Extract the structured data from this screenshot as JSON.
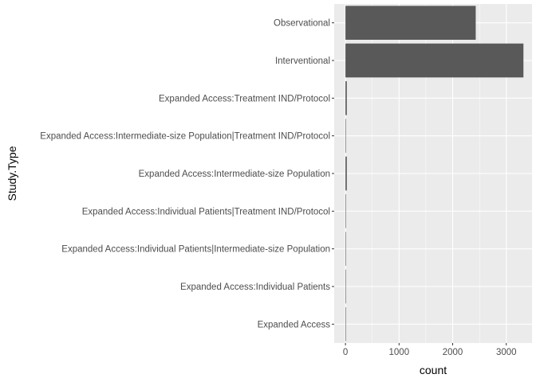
{
  "chart_data": {
    "type": "bar",
    "orientation": "horizontal",
    "xlabel": "count",
    "ylabel": "Study.Type",
    "categories": [
      "Observational",
      "Interventional",
      "Expanded Access:Treatment IND/Protocol",
      "Expanded Access:Intermediate-size Population|Treatment IND/Protocol",
      "Expanded Access:Intermediate-size Population",
      "Expanded Access:Individual Patients|Treatment IND/Protocol",
      "Expanded Access:Individual Patients|Intermediate-size Population",
      "Expanded Access:Individual Patients",
      "Expanded Access"
    ],
    "values": [
      2430,
      3320,
      25,
      2,
      25,
      3,
      3,
      5,
      6
    ],
    "xlim": [
      -210,
      3480
    ],
    "xticks": [
      0,
      1000,
      2000,
      3000
    ],
    "xtick_labels": [
      "0",
      "1000",
      "2000",
      "3000"
    ],
    "grid": true,
    "legend": "none",
    "colors": {
      "bar": "#595959",
      "panel": "#ebebeb",
      "grid_major": "#ffffff",
      "text": "#4d4d4d"
    }
  }
}
